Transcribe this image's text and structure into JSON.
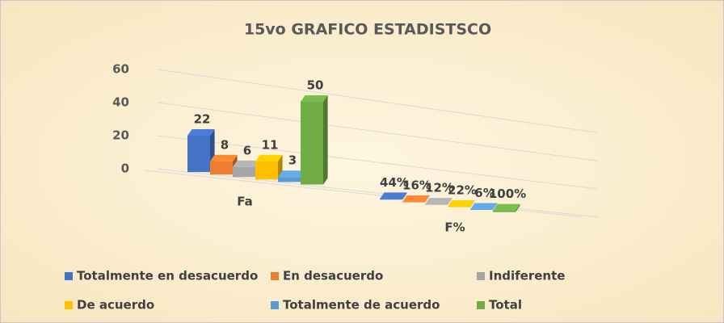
{
  "chart_data": {
    "type": "bar3d",
    "title": "15vo GRAFICO ESTADISTSCO",
    "categories": [
      "Fa",
      "F%"
    ],
    "series": [
      {
        "name": "Totalmente en desacuerdo",
        "color": "#4472c4",
        "values": [
          22,
          0.44
        ],
        "value_labels": [
          "22",
          "44%"
        ]
      },
      {
        "name": "En desacuerdo",
        "color": "#ed7d31",
        "values": [
          8,
          0.16
        ],
        "value_labels": [
          "8",
          "16%"
        ]
      },
      {
        "name": "Indiferente",
        "color": "#a5a5a5",
        "values": [
          6,
          0.12
        ],
        "value_labels": [
          "6",
          "12%"
        ]
      },
      {
        "name": "De acuerdo",
        "color": "#ffc000",
        "values": [
          11,
          0.22
        ],
        "value_labels": [
          "11",
          "22%"
        ]
      },
      {
        "name": "Totalmente de acuerdo",
        "color": "#5b9bd5",
        "values": [
          3,
          0.06
        ],
        "value_labels": [
          "3",
          "6%"
        ]
      },
      {
        "name": "Total",
        "color": "#70ad47",
        "values": [
          50,
          1
        ],
        "value_labels": [
          "50",
          "100%"
        ]
      }
    ],
    "ylim": [
      0,
      60
    ],
    "yticks": [
      0,
      20,
      40,
      60
    ],
    "grid": true,
    "legend": "bottom"
  }
}
